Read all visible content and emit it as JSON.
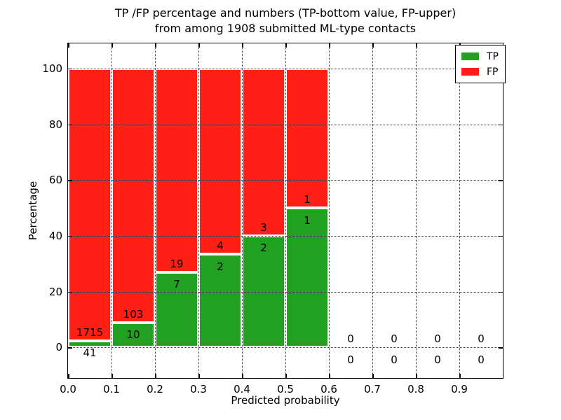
{
  "chart_data": {
    "type": "bar",
    "stacked": true,
    "normalized_to_percent": true,
    "title_line1": "TP /FP percentage and numbers (TP-bottom value, FP-upper)",
    "title_line2": "from among 1908 submitted ML-type contacts",
    "xlabel": "Predicted probability",
    "ylabel": "Percentage",
    "xlim": [
      0.0,
      1.0
    ],
    "ylim": [
      -11,
      109
    ],
    "x_ticks": [
      "0.0",
      "0.1",
      "0.2",
      "0.3",
      "0.4",
      "0.5",
      "0.6",
      "0.7",
      "0.8",
      "0.9"
    ],
    "y_ticks": [
      0,
      20,
      40,
      60,
      80,
      100
    ],
    "grid": "dotted",
    "legend_position": "upper right",
    "legend": [
      {
        "label": "TP",
        "color": "#22a022"
      },
      {
        "label": "FP",
        "color": "#ff1f14"
      }
    ],
    "bins": [
      {
        "range": [
          0.0,
          0.1
        ],
        "tp": 41,
        "fp": 1715,
        "tp_pct": 2.33
      },
      {
        "range": [
          0.1,
          0.2
        ],
        "tp": 10,
        "fp": 103,
        "tp_pct": 8.85
      },
      {
        "range": [
          0.2,
          0.3
        ],
        "tp": 7,
        "fp": 19,
        "tp_pct": 26.92
      },
      {
        "range": [
          0.3,
          0.4
        ],
        "tp": 2,
        "fp": 4,
        "tp_pct": 33.33
      },
      {
        "range": [
          0.4,
          0.5
        ],
        "tp": 2,
        "fp": 3,
        "tp_pct": 40.0
      },
      {
        "range": [
          0.5,
          0.6
        ],
        "tp": 1,
        "fp": 1,
        "tp_pct": 50.0
      },
      {
        "range": [
          0.6,
          0.7
        ],
        "tp": 0,
        "fp": 0,
        "tp_pct": 0
      },
      {
        "range": [
          0.7,
          0.8
        ],
        "tp": 0,
        "fp": 0,
        "tp_pct": 0
      },
      {
        "range": [
          0.8,
          0.9
        ],
        "tp": 0,
        "fp": 0,
        "tp_pct": 0
      },
      {
        "range": [
          0.9,
          1.0
        ],
        "tp": 0,
        "fp": 0,
        "tp_pct": 0
      }
    ]
  }
}
